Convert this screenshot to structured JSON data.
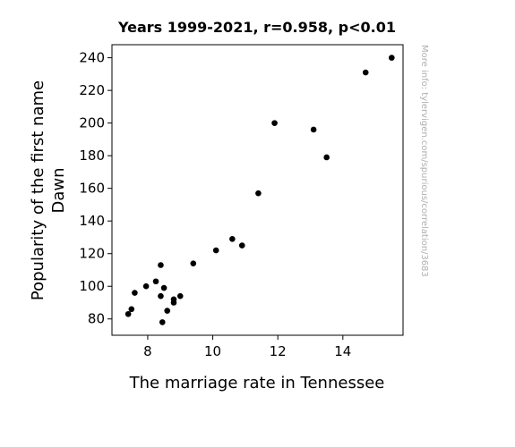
{
  "chart_data": {
    "type": "scatter",
    "title": "Years 1999-2021, r=0.958, p<0.01",
    "xlabel": "The marriage rate in Tennessee",
    "ylabel_lines": [
      "Popularity of the first name",
      "Dawn"
    ],
    "watermark": "More info: tylervigen.com/spurious/correlation/3683",
    "xlim": [
      6.9,
      15.85
    ],
    "ylim": [
      70,
      248
    ],
    "xticks": [
      8,
      10,
      12,
      14
    ],
    "yticks": [
      80,
      100,
      120,
      140,
      160,
      180,
      200,
      220,
      240
    ],
    "marker_color": "#000000",
    "grid": false,
    "points": [
      {
        "x": 7.4,
        "y": 83
      },
      {
        "x": 7.5,
        "y": 86
      },
      {
        "x": 7.6,
        "y": 96
      },
      {
        "x": 7.95,
        "y": 100
      },
      {
        "x": 8.25,
        "y": 103
      },
      {
        "x": 8.4,
        "y": 113
      },
      {
        "x": 8.4,
        "y": 94
      },
      {
        "x": 8.45,
        "y": 78
      },
      {
        "x": 8.5,
        "y": 99
      },
      {
        "x": 8.6,
        "y": 85
      },
      {
        "x": 8.8,
        "y": 92
      },
      {
        "x": 8.8,
        "y": 90
      },
      {
        "x": 9.0,
        "y": 94
      },
      {
        "x": 9.4,
        "y": 114
      },
      {
        "x": 10.1,
        "y": 122
      },
      {
        "x": 10.6,
        "y": 129
      },
      {
        "x": 10.9,
        "y": 125
      },
      {
        "x": 11.4,
        "y": 157
      },
      {
        "x": 11.9,
        "y": 200
      },
      {
        "x": 13.1,
        "y": 196
      },
      {
        "x": 13.5,
        "y": 179
      },
      {
        "x": 14.7,
        "y": 231
      },
      {
        "x": 15.5,
        "y": 240
      }
    ]
  }
}
